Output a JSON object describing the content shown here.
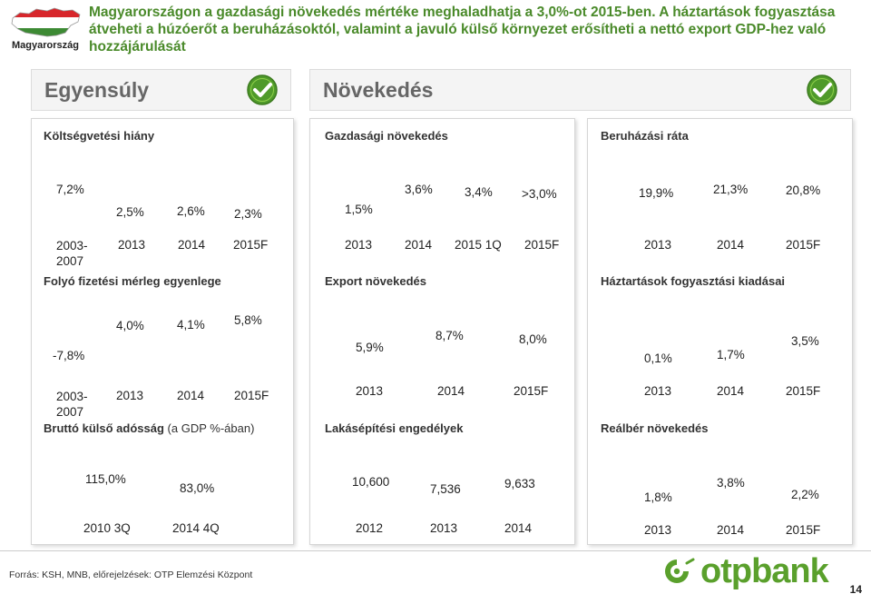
{
  "header": {
    "logo_label": "Magyarország",
    "headline": "Magyarországon a gazdasági növekedés mértéke meghaladhatja a 3,0%-ot 2015-ben. A háztartások fogyasztása átveheti a húzóerőt a beruházásoktól, valamint a javuló külső környezet erősítheti a nettó export GDP-hez való hozzájárulását"
  },
  "sections": {
    "left_title": "Egyensúly",
    "right_title": "Növekedés"
  },
  "colors": {
    "bar": "#6db530",
    "headline": "#4a8a2a",
    "check": "#4f9a2a"
  },
  "metrics": {
    "koltsegvetesi": {
      "title": "Költségvetési hiány",
      "chart_data": {
        "type": "bar",
        "categories": [
          "2003-2007",
          "2013",
          "2014",
          "2015F"
        ],
        "values": [
          7.2,
          2.5,
          2.6,
          2.3
        ],
        "value_labels": [
          "7,2%",
          "2,5%",
          "2,6%",
          "2,3%"
        ]
      }
    },
    "folyo": {
      "title": "Folyó fizetési mérleg egyenlege",
      "chart_data": {
        "type": "bar",
        "categories": [
          "2003-2007",
          "2013",
          "2014",
          "2015F"
        ],
        "values": [
          -7.8,
          4.0,
          4.1,
          5.8
        ],
        "value_labels": [
          "-7,8%",
          "4,0%",
          "4,1%",
          "5,8%"
        ]
      }
    },
    "brutto": {
      "title": "Bruttó külső adósság",
      "title_suffix": "(a GDP %-ában)",
      "chart_data": {
        "type": "bar",
        "categories": [
          "2010 3Q",
          "2014 4Q"
        ],
        "values": [
          115.0,
          83.0
        ],
        "value_labels": [
          "115,0%",
          "83,0%"
        ]
      }
    },
    "gazdasagi": {
      "title": "Gazdasági növekedés",
      "chart_data": {
        "type": "bar",
        "categories": [
          "2013",
          "2014",
          "2015 1Q",
          "2015F"
        ],
        "values": [
          1.5,
          3.6,
          3.4,
          3.0
        ],
        "value_labels": [
          "1,5%",
          "3,6%",
          "3,4%",
          ">3,0%"
        ]
      }
    },
    "export": {
      "title": "Export növekedés",
      "chart_data": {
        "type": "bar",
        "categories": [
          "2013",
          "2014",
          "2015F"
        ],
        "values": [
          5.9,
          8.7,
          8.0
        ],
        "value_labels": [
          "5,9%",
          "8,7%",
          "8,0%"
        ]
      }
    },
    "lakasepitesi": {
      "title": "Lakásépítési engedélyek",
      "chart_data": {
        "type": "bar",
        "categories": [
          "2012",
          "2013",
          "2014"
        ],
        "values": [
          10600,
          7536,
          9633
        ],
        "value_labels": [
          "10,600",
          "7,536",
          "9,633"
        ]
      }
    },
    "beruhazasi": {
      "title": "Beruházási ráta",
      "chart_data": {
        "type": "bar",
        "categories": [
          "2013",
          "2014",
          "2015F"
        ],
        "values": [
          19.9,
          21.3,
          20.8
        ],
        "value_labels": [
          "19,9%",
          "21,3%",
          "20,8%"
        ]
      }
    },
    "haztartasok": {
      "title": "Háztartások fogyasztási kiadásai",
      "chart_data": {
        "type": "bar",
        "categories": [
          "2013",
          "2014",
          "2015F"
        ],
        "values": [
          0.1,
          1.7,
          3.5
        ],
        "value_labels": [
          "0,1%",
          "1,7%",
          "3,5%"
        ]
      }
    },
    "realber": {
      "title": "Reálbér növekedés",
      "chart_data": {
        "type": "bar",
        "categories": [
          "2013",
          "2014",
          "2015F"
        ],
        "values": [
          1.8,
          3.8,
          2.2
        ],
        "value_labels": [
          "1,8%",
          "3,8%",
          "2,2%"
        ]
      }
    }
  },
  "footer": {
    "source": "Forrás: KSH, MNB, előrejelzések: OTP Elemzési Központ",
    "brand": "otpbank",
    "page_number": "14"
  }
}
